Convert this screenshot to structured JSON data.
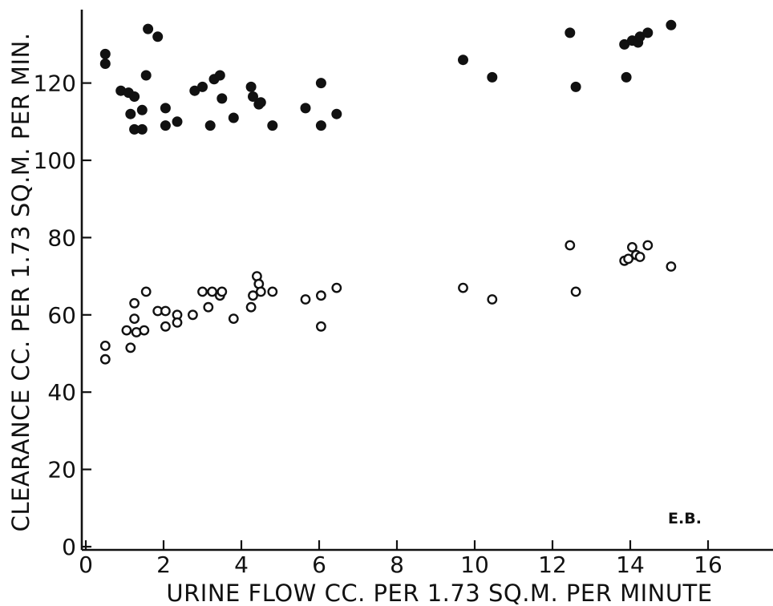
{
  "chart_data": {
    "type": "scatter",
    "xlabel": "URINE FLOW CC. PER 1.73 SQ.M. PER MINUTE",
    "ylabel": "CLEARANCE CC. PER 1.73 SQ.M. PER MIN.",
    "xlim": [
      0,
      18
    ],
    "ylim": [
      0,
      140
    ],
    "xticks": [
      0,
      2,
      4,
      6,
      8,
      10,
      12,
      14,
      16
    ],
    "yticks": [
      0,
      20,
      40,
      60,
      80,
      100,
      120
    ],
    "xtick_labels": [
      "0",
      "2",
      "4",
      "6",
      "8",
      "10",
      "12",
      "14",
      "16"
    ],
    "ytick_labels": [
      "0",
      "20",
      "40",
      "60",
      "80",
      "100",
      "120"
    ],
    "annotation": "E.B.",
    "grid": false,
    "series": [
      {
        "marker": "filled-circle",
        "x": [
          0.5,
          0.5,
          0.9,
          1.1,
          1.15,
          1.25,
          1.25,
          1.45,
          1.45,
          1.55,
          1.6,
          1.85,
          2.05,
          2.05,
          2.35,
          2.8,
          3.0,
          3.2,
          3.3,
          3.45,
          3.5,
          3.8,
          4.25,
          4.3,
          4.45,
          4.5,
          4.8,
          5.65,
          6.05,
          6.05,
          6.45,
          9.7,
          10.45,
          12.45,
          12.6,
          13.85,
          13.9,
          14.05,
          14.2,
          14.25,
          14.45,
          15.05
        ],
        "y": [
          127.5,
          125.0,
          118.0,
          117.5,
          112.0,
          116.5,
          108.0,
          113.0,
          108.0,
          122.0,
          134.0,
          132.0,
          113.5,
          109.0,
          110.0,
          118.0,
          119.0,
          109.0,
          121.0,
          122.0,
          116.0,
          111.0,
          119.0,
          116.5,
          114.5,
          115.0,
          109.0,
          113.5,
          120.0,
          109.0,
          112.0,
          126.0,
          121.5,
          133.0,
          119.0,
          130.0,
          121.5,
          131.0,
          130.5,
          132.0,
          133.0,
          135.0
        ]
      },
      {
        "marker": "open-circle",
        "x": [
          0.5,
          0.5,
          1.05,
          1.15,
          1.25,
          1.25,
          1.3,
          1.5,
          1.55,
          1.85,
          2.05,
          2.05,
          2.35,
          2.35,
          2.75,
          3.0,
          3.15,
          3.25,
          3.45,
          3.5,
          3.8,
          4.25,
          4.3,
          4.4,
          4.45,
          4.5,
          4.8,
          5.65,
          6.05,
          6.05,
          6.45,
          9.7,
          10.45,
          12.45,
          12.6,
          13.85,
          13.95,
          14.05,
          14.15,
          14.25,
          14.45,
          15.05
        ],
        "y": [
          52.0,
          48.5,
          56.0,
          51.5,
          63.0,
          59.0,
          55.5,
          56.0,
          66.0,
          61.0,
          61.0,
          57.0,
          60.0,
          58.0,
          60.0,
          66.0,
          62.0,
          66.0,
          65.0,
          66.0,
          59.0,
          62.0,
          65.0,
          70.0,
          68.0,
          66.0,
          66.0,
          64.0,
          65.0,
          57.0,
          67.0,
          67.0,
          64.0,
          78.0,
          66.0,
          74.0,
          74.5,
          77.5,
          75.5,
          75.0,
          78.0,
          72.5
        ]
      }
    ]
  }
}
